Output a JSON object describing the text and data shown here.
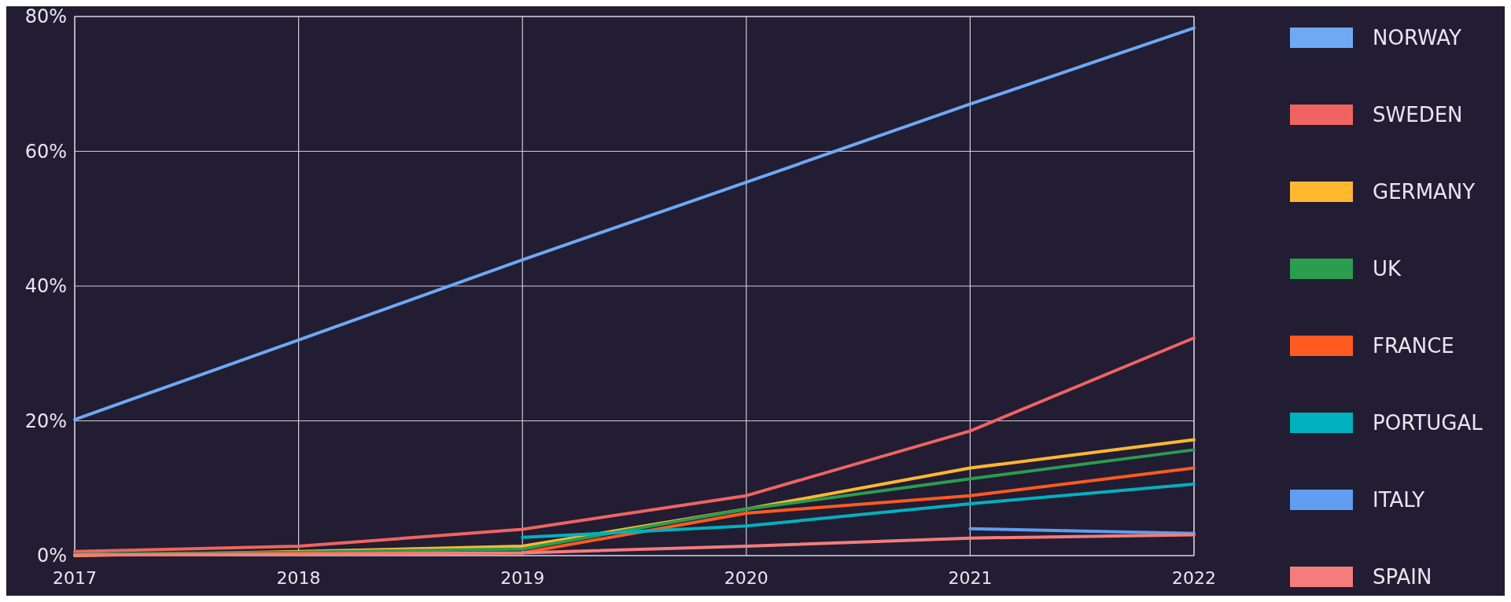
{
  "chart_data": {
    "type": "line",
    "x": [
      2017,
      2018,
      2019,
      2020,
      2021,
      2022
    ],
    "xlim": [
      2017,
      2022
    ],
    "xticks": [
      2017,
      2018,
      2019,
      2020,
      2021,
      2022
    ],
    "ylim": [
      0,
      80
    ],
    "yticks": [
      {
        "value": 0,
        "label": "0%"
      },
      {
        "value": 20,
        "label": "20%"
      },
      {
        "value": 40,
        "label": "40%"
      },
      {
        "value": 60,
        "label": "60%"
      },
      {
        "value": 80,
        "label": "80%"
      }
    ],
    "grid": true,
    "legend": "right",
    "line_style": "solid",
    "series": [
      {
        "name": "NORWAY",
        "color": "#6fa8f5",
        "values": [
          20.2,
          32,
          43.9,
          55.4,
          67,
          78.3
        ]
      },
      {
        "name": "SWEDEN",
        "color": "#ef6461",
        "values": [
          0.6,
          1.4,
          3.9,
          8.9,
          18.5,
          32.3
        ]
      },
      {
        "name": "GERMANY",
        "color": "#ffb830",
        "values": [
          0,
          0.6,
          1.4,
          6.9,
          13,
          17.2
        ]
      },
      {
        "name": "UK",
        "color": "#2a9d4f",
        "values": [
          0.2,
          0.5,
          1,
          6.9,
          11.4,
          15.7
        ]
      },
      {
        "name": "FRANCE",
        "color": "#ff5a1f",
        "values": [
          0.1,
          0.3,
          0.4,
          6.3,
          8.9,
          13
        ]
      },
      {
        "name": "PORTUGAL",
        "color": "#00b2bd",
        "values": [
          null,
          null,
          2.7,
          4.4,
          7.7,
          10.6
        ]
      },
      {
        "name": "ITALY",
        "color": "#5f9ef0",
        "values": [
          null,
          null,
          null,
          null,
          4,
          3.3
        ]
      },
      {
        "name": "SPAIN",
        "color": "#f47c7c",
        "values": [
          0.1,
          0.2,
          0.4,
          1.4,
          2.6,
          3.1
        ]
      }
    ]
  }
}
